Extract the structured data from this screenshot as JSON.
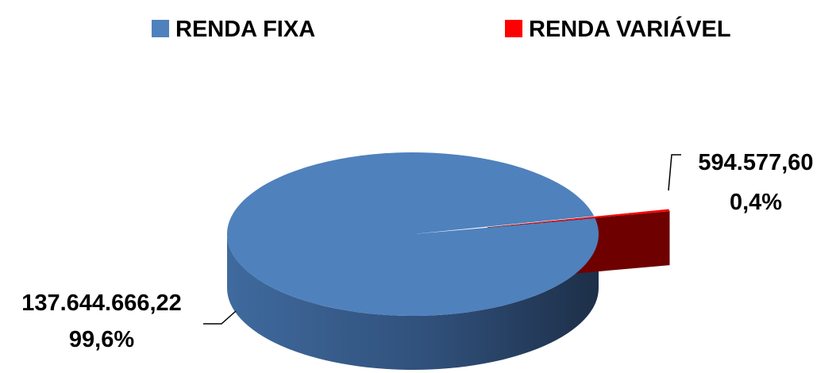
{
  "chart_data": {
    "type": "pie",
    "title": "",
    "legend_position": "top",
    "slices": [
      {
        "name": "RENDA FIXA",
        "value": 137644666.22,
        "value_label": "137.644.666,22",
        "percent": 99.6,
        "percent_label": "99,6%",
        "color": "#4f81bd"
      },
      {
        "name": "RENDA VARIÁVEL",
        "value": 594577.6,
        "value_label": "594.577,60",
        "percent": 0.4,
        "percent_label": "0,4%",
        "color": "#ff0000"
      }
    ]
  }
}
